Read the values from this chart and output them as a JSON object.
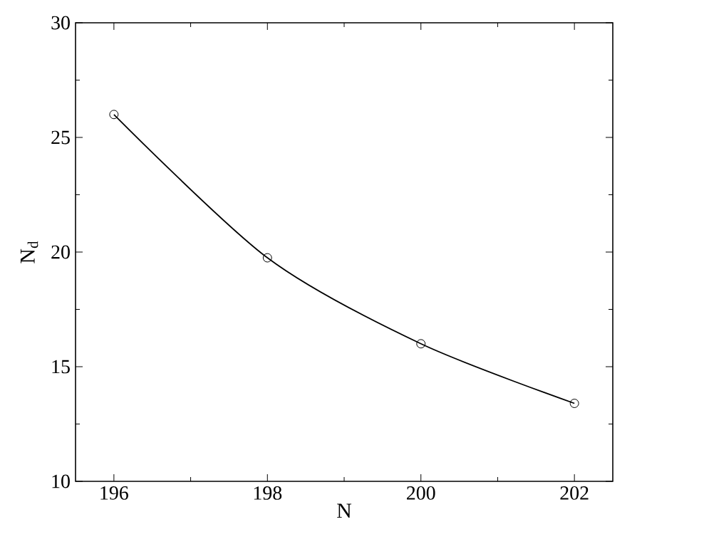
{
  "chart_data": {
    "type": "line",
    "xlabel": "N",
    "ylabel": "N$_{d}$",
    "x": [
      196,
      198,
      200,
      202
    ],
    "series": [
      {
        "color": "#000000",
        "values": [
          26,
          19.75,
          16,
          13.4
        ]
      }
    ],
    "xlim": [
      195.5,
      202.5
    ],
    "ylim": [
      10,
      30
    ],
    "xticks": [
      196,
      198,
      200,
      202
    ],
    "yticks": [
      10,
      15,
      20,
      25,
      30
    ],
    "marker": "circle",
    "line_style": "solid"
  }
}
